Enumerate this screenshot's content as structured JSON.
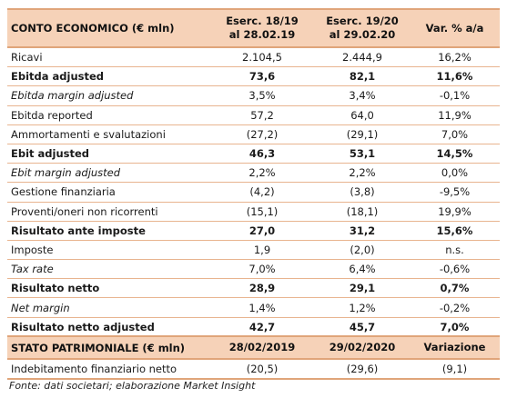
{
  "income": {
    "title": "CONTO ECONOMICO (€ mln)",
    "col1": [
      "Eserc. 18/19",
      "al 28.02.19"
    ],
    "col2": [
      "Eserc. 19/20",
      "al 29.02.20"
    ],
    "col3": "Var. % a/a",
    "rows": [
      {
        "label": "Ricavi",
        "v1": "2.104,5",
        "v2": "2.444,9",
        "v3": "16,2%",
        "style": ""
      },
      {
        "label": "Ebitda adjusted",
        "v1": "73,6",
        "v2": "82,1",
        "v3": "11,6%",
        "style": "b"
      },
      {
        "label": "Ebitda margin adjusted",
        "v1": "3,5%",
        "v2": "3,4%",
        "v3": "-0,1%",
        "style": "i"
      },
      {
        "label": "Ebitda reported",
        "v1": "57,2",
        "v2": "64,0",
        "v3": "11,9%",
        "style": ""
      },
      {
        "label": "Ammortamenti e svalutazioni",
        "v1": "(27,2)",
        "v2": "(29,1)",
        "v3": "7,0%",
        "style": ""
      },
      {
        "label": "Ebit adjusted",
        "v1": "46,3",
        "v2": "53,1",
        "v3": "14,5%",
        "style": "b"
      },
      {
        "label": "Ebit margin adjusted",
        "v1": "2,2%",
        "v2": "2,2%",
        "v3": "0,0%",
        "style": "i"
      },
      {
        "label": "Gestione finanziaria",
        "v1": "(4,2)",
        "v2": "(3,8)",
        "v3": "-9,5%",
        "style": ""
      },
      {
        "label": "Proventi/oneri non ricorrenti",
        "v1": "(15,1)",
        "v2": "(18,1)",
        "v3": "19,9%",
        "style": ""
      },
      {
        "label": "Risultato ante imposte",
        "v1": "27,0",
        "v2": "31,2",
        "v3": "15,6%",
        "style": "b"
      },
      {
        "label": "Imposte",
        "v1": "1,9",
        "v2": "(2,0)",
        "v3": "n.s.",
        "style": ""
      },
      {
        "label": "Tax rate",
        "v1": "7,0%",
        "v2": "6,4%",
        "v3": "-0,6%",
        "style": "i"
      },
      {
        "label": "Risultato netto",
        "v1": "28,9",
        "v2": "29,1",
        "v3": "0,7%",
        "style": "b"
      },
      {
        "label": "Net margin",
        "v1": "1,4%",
        "v2": "1,2%",
        "v3": "-0,2%",
        "style": "i"
      },
      {
        "label": "Risultato netto adjusted",
        "v1": "42,7",
        "v2": "45,7",
        "v3": "7,0%",
        "style": "b"
      }
    ]
  },
  "balance": {
    "title": "STATO PATRIMONIALE (€ mln)",
    "col1": "28/02/2019",
    "col2": "29/02/2020",
    "col3": "Variazione",
    "rows": [
      {
        "label": "Indebitamento finanziario netto",
        "v1": "(20,5)",
        "v2": "(29,6)",
        "v3": "(9,1)"
      }
    ]
  },
  "source": "Fonte: dati societari; elaborazione Market Insight",
  "colors": {
    "header_bg": "#f6d2b8",
    "rule": "#e0a57a"
  }
}
